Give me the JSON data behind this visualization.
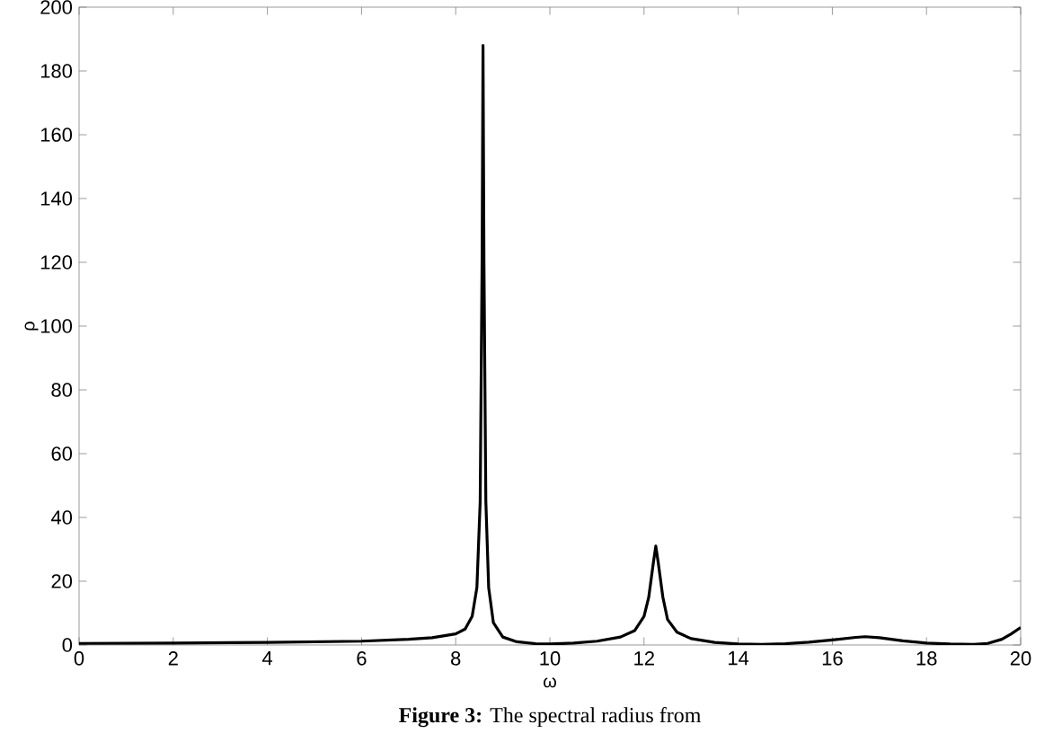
{
  "chart_data": {
    "type": "line",
    "xlabel": "ω",
    "ylabel": "ρ",
    "annotations": [
      "**Figure 3:** The spectral radius from"
    ],
    "x": [
      0,
      2,
      4,
      6,
      7,
      7.5,
      8,
      8.2,
      8.35,
      8.45,
      8.52,
      8.56,
      8.58,
      8.6,
      8.64,
      8.7,
      8.8,
      9,
      9.3,
      9.7,
      10,
      10.5,
      11,
      11.5,
      11.8,
      12,
      12.1,
      12.2,
      12.25,
      12.3,
      12.4,
      12.5,
      12.7,
      13,
      13.5,
      14,
      14.5,
      15,
      15.5,
      16,
      16.5,
      16.7,
      17,
      17.5,
      18,
      18.5,
      19,
      19.3,
      19.6,
      19.8,
      20
    ],
    "series": [
      {
        "color": "#000000",
        "values": [
          0.5,
          0.6,
          0.8,
          1.2,
          1.8,
          2.3,
          3.5,
          5,
          9,
          18,
          45,
          120,
          188,
          120,
          45,
          18,
          7,
          2.5,
          1,
          0.4,
          0.3,
          0.6,
          1.2,
          2.5,
          4.5,
          9,
          15,
          26,
          31,
          26,
          15,
          8,
          4,
          2,
          0.8,
          0.3,
          0.2,
          0.4,
          0.9,
          1.6,
          2.4,
          2.6,
          2.3,
          1.3,
          0.6,
          0.3,
          0.2,
          0.5,
          1.8,
          3.5,
          5.5
        ]
      }
    ],
    "xlim": [
      0,
      20
    ],
    "ylim": [
      0,
      200
    ],
    "xticks": [
      0,
      2,
      4,
      6,
      8,
      10,
      12,
      14,
      16,
      18,
      20
    ],
    "yticks": [
      0,
      20,
      40,
      60,
      80,
      100,
      120,
      140,
      160,
      180,
      200
    ],
    "grid": false,
    "marker": "none",
    "line_style": "solid"
  }
}
